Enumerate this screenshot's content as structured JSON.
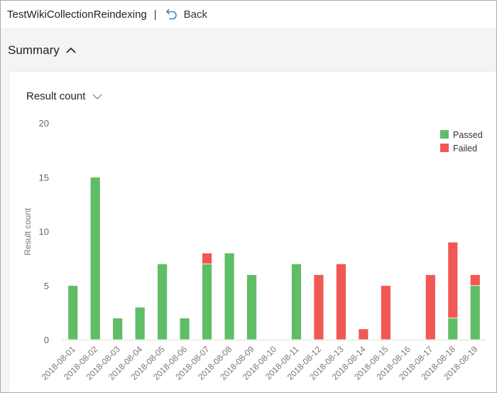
{
  "header": {
    "title": "TestWikiCollectionReindexing",
    "separator": "|",
    "back_label": "Back",
    "back_icon": "undo-arrow-icon"
  },
  "summary": {
    "label": "Summary",
    "icon": "chevron-up-icon"
  },
  "metric_picker": {
    "label": "Result count",
    "icon": "chevron-down-icon"
  },
  "colors": {
    "passed": "#5fbd66",
    "failed": "#f15753",
    "accent": "#4a7fc1"
  },
  "chart_data": {
    "type": "bar",
    "stacked": true,
    "title": "",
    "xlabel": "",
    "ylabel": "Result count",
    "ylim": [
      0,
      20
    ],
    "yticks": [
      0,
      5,
      10,
      15,
      20
    ],
    "grid": false,
    "legend_position": "top-right",
    "categories": [
      "2018-08-01",
      "2018-08-02",
      "2018-08-03",
      "2018-08-04",
      "2018-08-05",
      "2018-08-06",
      "2018-08-07",
      "2018-08-08",
      "2018-08-09",
      "2018-08-10",
      "2018-08-11",
      "2018-08-12",
      "2018-08-13",
      "2018-08-14",
      "2018-08-15",
      "2018-08-16",
      "2018-08-17",
      "2018-08-18",
      "2018-08-19"
    ],
    "series": [
      {
        "name": "Passed",
        "color": "#5fbd66",
        "values": [
          5,
          15,
          2,
          3,
          7,
          2,
          7,
          8,
          6,
          0,
          7,
          0,
          0,
          0,
          0,
          0,
          0,
          2,
          5
        ]
      },
      {
        "name": "Failed",
        "color": "#f15753",
        "values": [
          0,
          0,
          0,
          0,
          0,
          0,
          1,
          0,
          0,
          0,
          0,
          6,
          7,
          1,
          5,
          0,
          6,
          7,
          1
        ]
      }
    ]
  }
}
